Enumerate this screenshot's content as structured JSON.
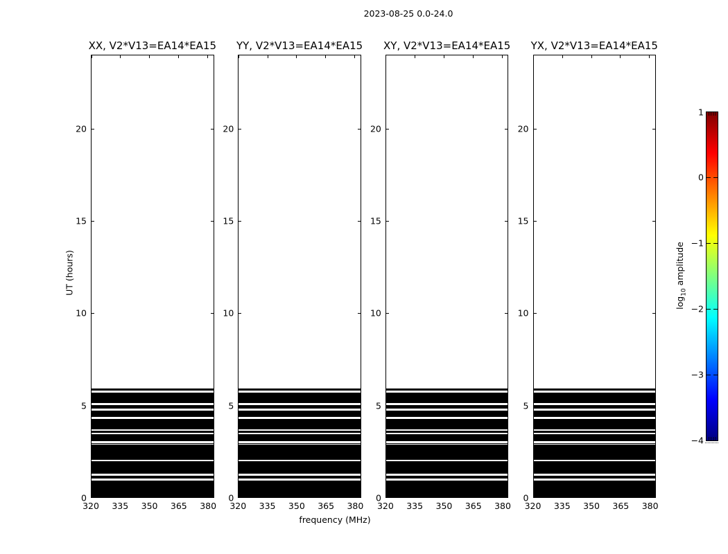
{
  "figure": {
    "suptitle": "2023-08-25 0.0-24.0"
  },
  "chart_data": {
    "type": "heatmap",
    "title": "2023-08-25 0.0-24.0",
    "baseline": "V2*V13=EA14*EA15",
    "panels": [
      {
        "title": "XX, V2*V13=EA14*EA15",
        "polarization": "XX"
      },
      {
        "title": "YY, V2*V13=EA14*EA15",
        "polarization": "YY"
      },
      {
        "title": "XY, V2*V13=EA14*EA15",
        "polarization": "XY"
      },
      {
        "title": "YX, V2*V13=EA14*EA15",
        "polarization": "YX"
      }
    ],
    "xlabel": "frequency (MHz)",
    "ylabel": "UT (hours)",
    "x_ticks": [
      320,
      335,
      350,
      365,
      380
    ],
    "x_range": [
      320,
      383
    ],
    "y_ticks": [
      0,
      5,
      10,
      15,
      20
    ],
    "y_range": [
      0,
      24
    ],
    "data_color": "#000000",
    "background_color": "#ffffff",
    "black_bands_ut": [
      [
        0.0,
        0.9
      ],
      [
        1.0,
        1.17
      ],
      [
        1.26,
        1.96
      ],
      [
        2.05,
        2.85
      ],
      [
        2.91,
        2.95
      ],
      [
        3.03,
        3.42
      ],
      [
        3.5,
        3.61
      ],
      [
        3.7,
        4.26
      ],
      [
        4.38,
        4.72
      ],
      [
        4.82,
        5.01
      ],
      [
        5.13,
        5.68
      ],
      [
        5.78,
        5.91
      ]
    ],
    "colorbar": {
      "label_prefix": "log",
      "label_sub": "10",
      "label_suffix": " amplitude",
      "ticks": [
        1,
        0,
        -1,
        -2,
        -3,
        -4
      ],
      "range": [
        -4,
        1
      ],
      "colormap": "jet",
      "gradient_stops": [
        {
          "color": "#7f0000",
          "pos": 0
        },
        {
          "color": "#ff0000",
          "pos": 12.5
        },
        {
          "color": "#ffff00",
          "pos": 37.5
        },
        {
          "color": "#00ffff",
          "pos": 62.5
        },
        {
          "color": "#0000ff",
          "pos": 87.5
        },
        {
          "color": "#00007f",
          "pos": 100
        }
      ]
    }
  }
}
